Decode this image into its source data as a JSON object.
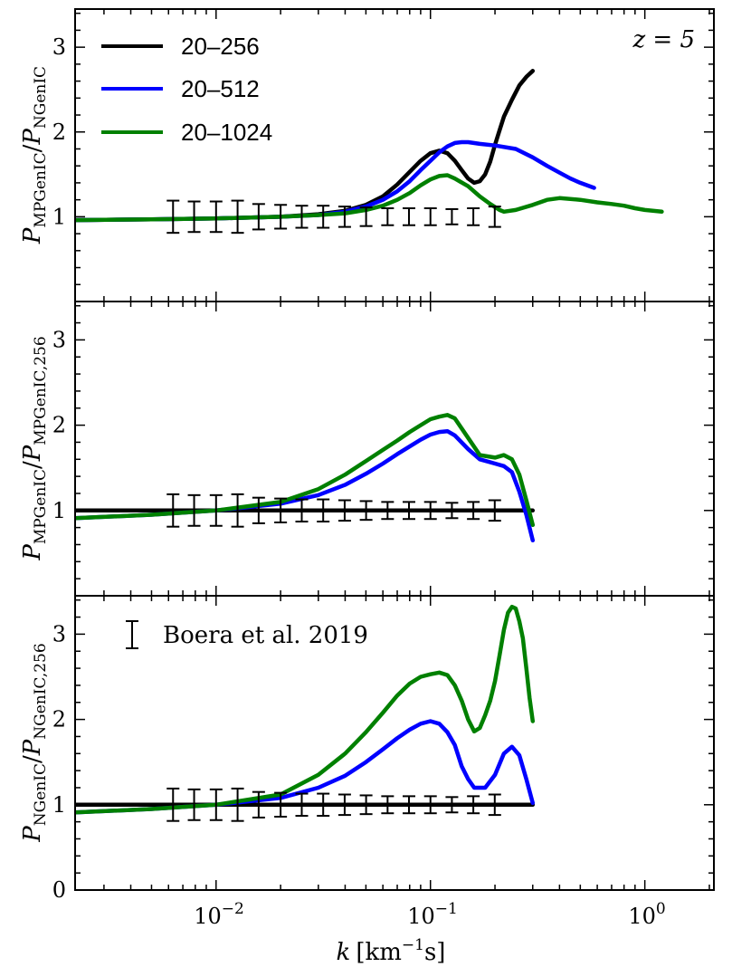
{
  "figure": {
    "xlabel_k": "k",
    "xlabel_units": "[km",
    "xlabel_exp": "−1",
    "xlabel_tail": "s]",
    "xtick_base": "10",
    "x_ticks": [
      {
        "value": 0.01,
        "exp": "−2"
      },
      {
        "value": 0.1,
        "exp": "−1"
      },
      {
        "value": 1.0,
        "exp": "0"
      }
    ],
    "xlim": [
      0.0022,
      2.1
    ]
  },
  "chart_data": [
    {
      "type": "line",
      "panel": "top",
      "ylabel": {
        "main": "P",
        "sub1": "MPGenIC",
        "sep": "/",
        "main2": "P",
        "sub2": "NGenIC"
      },
      "ylim": [
        0,
        3.45
      ],
      "y_ticks": [
        "1",
        "2",
        "3"
      ],
      "annotation": "z = 5",
      "legend": [
        {
          "label": "20–256",
          "color": "#000000"
        },
        {
          "label": "20–512",
          "color": "#0000ff"
        },
        {
          "label": "20–1024",
          "color": "#008000"
        }
      ],
      "series": [
        {
          "name": "20–256",
          "color": "#000000",
          "x": [
            0.0022,
            0.005,
            0.01,
            0.02,
            0.03,
            0.04,
            0.05,
            0.06,
            0.07,
            0.08,
            0.09,
            0.1,
            0.11,
            0.12,
            0.13,
            0.14,
            0.15,
            0.16,
            0.17,
            0.18,
            0.19,
            0.2,
            0.21,
            0.22,
            0.24,
            0.26,
            0.28,
            0.3
          ],
          "y": [
            0.96,
            0.97,
            0.98,
            1.0,
            1.03,
            1.07,
            1.14,
            1.24,
            1.38,
            1.53,
            1.66,
            1.75,
            1.78,
            1.75,
            1.66,
            1.55,
            1.45,
            1.4,
            1.42,
            1.5,
            1.65,
            1.85,
            2.02,
            2.18,
            2.38,
            2.55,
            2.65,
            2.72
          ]
        },
        {
          "name": "20–512",
          "color": "#0000ff",
          "x": [
            0.0022,
            0.005,
            0.01,
            0.02,
            0.03,
            0.04,
            0.05,
            0.06,
            0.07,
            0.08,
            0.09,
            0.1,
            0.11,
            0.12,
            0.13,
            0.14,
            0.15,
            0.17,
            0.2,
            0.25,
            0.3,
            0.35,
            0.4,
            0.45,
            0.5,
            0.58
          ],
          "y": [
            0.96,
            0.97,
            0.98,
            1.0,
            1.02,
            1.06,
            1.12,
            1.2,
            1.3,
            1.42,
            1.55,
            1.66,
            1.76,
            1.83,
            1.87,
            1.88,
            1.88,
            1.86,
            1.84,
            1.8,
            1.7,
            1.6,
            1.52,
            1.45,
            1.4,
            1.34
          ]
        },
        {
          "name": "20–1024",
          "color": "#008000",
          "x": [
            0.0022,
            0.005,
            0.01,
            0.02,
            0.03,
            0.04,
            0.05,
            0.06,
            0.07,
            0.08,
            0.09,
            0.1,
            0.11,
            0.12,
            0.13,
            0.15,
            0.17,
            0.19,
            0.21,
            0.22,
            0.25,
            0.3,
            0.35,
            0.4,
            0.5,
            0.6,
            0.7,
            0.8,
            0.9,
            1.0,
            1.2
          ],
          "y": [
            0.96,
            0.97,
            0.98,
            1.0,
            1.02,
            1.04,
            1.08,
            1.13,
            1.2,
            1.28,
            1.37,
            1.44,
            1.48,
            1.49,
            1.45,
            1.36,
            1.24,
            1.15,
            1.08,
            1.06,
            1.08,
            1.14,
            1.2,
            1.22,
            1.2,
            1.17,
            1.15,
            1.13,
            1.1,
            1.08,
            1.06
          ]
        }
      ],
      "errorbars": {
        "x": [
          0.0063,
          0.0079,
          0.01,
          0.0126,
          0.0158,
          0.02,
          0.0251,
          0.0316,
          0.0398,
          0.0501,
          0.0631,
          0.0794,
          0.1,
          0.1259,
          0.1585,
          0.1995
        ],
        "y": [
          1.0,
          1.0,
          1.0,
          1.0,
          1.0,
          1.0,
          1.0,
          1.0,
          1.0,
          1.0,
          1.0,
          1.0,
          1.0,
          1.0,
          1.0,
          1.0
        ],
        "err": [
          0.19,
          0.18,
          0.18,
          0.19,
          0.15,
          0.14,
          0.13,
          0.13,
          0.12,
          0.11,
          0.1,
          0.1,
          0.1,
          0.09,
          0.1,
          0.12
        ]
      }
    },
    {
      "type": "line",
      "panel": "middle",
      "ylabel": {
        "main": "P",
        "sub1": "MPGenIC",
        "sep": "/",
        "main2": "P",
        "sub2": "MPGenIC,256"
      },
      "ylim": [
        0,
        3.45
      ],
      "y_ticks": [
        "1",
        "2",
        "3"
      ],
      "series": [
        {
          "name": "20–256",
          "color": "#000000",
          "x": [
            0.0022,
            0.3
          ],
          "y": [
            1.0,
            1.0
          ]
        },
        {
          "name": "20–512",
          "color": "#0000ff",
          "x": [
            0.0022,
            0.005,
            0.01,
            0.02,
            0.03,
            0.04,
            0.05,
            0.06,
            0.07,
            0.08,
            0.09,
            0.1,
            0.11,
            0.12,
            0.13,
            0.15,
            0.17,
            0.2,
            0.22,
            0.24,
            0.26,
            0.28,
            0.3
          ],
          "y": [
            0.91,
            0.95,
            1.0,
            1.08,
            1.18,
            1.3,
            1.43,
            1.55,
            1.66,
            1.75,
            1.83,
            1.89,
            1.92,
            1.93,
            1.88,
            1.72,
            1.6,
            1.55,
            1.52,
            1.45,
            1.22,
            0.95,
            0.65
          ]
        },
        {
          "name": "20–1024",
          "color": "#008000",
          "x": [
            0.0022,
            0.005,
            0.01,
            0.02,
            0.03,
            0.04,
            0.05,
            0.06,
            0.07,
            0.08,
            0.09,
            0.1,
            0.11,
            0.12,
            0.13,
            0.15,
            0.17,
            0.2,
            0.22,
            0.24,
            0.26,
            0.28,
            0.3
          ],
          "y": [
            0.91,
            0.95,
            1.0,
            1.1,
            1.25,
            1.42,
            1.58,
            1.71,
            1.82,
            1.92,
            2.0,
            2.07,
            2.1,
            2.12,
            2.08,
            1.85,
            1.65,
            1.62,
            1.65,
            1.6,
            1.42,
            1.12,
            0.83
          ]
        }
      ],
      "errorbars": {
        "x": [
          0.0063,
          0.0079,
          0.01,
          0.0126,
          0.0158,
          0.02,
          0.0251,
          0.0316,
          0.0398,
          0.0501,
          0.0631,
          0.0794,
          0.1,
          0.1259,
          0.1585,
          0.1995
        ],
        "y": [
          1.0,
          1.0,
          1.0,
          1.0,
          1.0,
          1.0,
          1.0,
          1.0,
          1.0,
          1.0,
          1.0,
          1.0,
          1.0,
          1.0,
          1.0,
          1.0
        ],
        "err": [
          0.19,
          0.18,
          0.18,
          0.19,
          0.15,
          0.14,
          0.13,
          0.13,
          0.12,
          0.11,
          0.1,
          0.1,
          0.1,
          0.09,
          0.1,
          0.12
        ]
      }
    },
    {
      "type": "line",
      "panel": "bottom",
      "ylabel": {
        "main": "P",
        "sub1": "NGenIC",
        "sep": "/",
        "main2": "P",
        "sub2": "NGenIC,256"
      },
      "ylim": [
        0,
        3.45
      ],
      "y_ticks": [
        "0",
        "1",
        "2",
        "3"
      ],
      "errorbar_legend": "Boera et al. 2019",
      "series": [
        {
          "name": "20–256",
          "color": "#000000",
          "x": [
            0.0022,
            0.3
          ],
          "y": [
            1.0,
            1.0
          ]
        },
        {
          "name": "20–512",
          "color": "#0000ff",
          "x": [
            0.0022,
            0.005,
            0.01,
            0.02,
            0.03,
            0.04,
            0.05,
            0.06,
            0.07,
            0.08,
            0.09,
            0.1,
            0.11,
            0.12,
            0.13,
            0.14,
            0.15,
            0.16,
            0.18,
            0.2,
            0.22,
            0.24,
            0.26,
            0.28,
            0.3
          ],
          "y": [
            0.91,
            0.95,
            1.0,
            1.08,
            1.2,
            1.34,
            1.5,
            1.65,
            1.78,
            1.88,
            1.95,
            1.98,
            1.95,
            1.85,
            1.7,
            1.45,
            1.3,
            1.2,
            1.2,
            1.35,
            1.6,
            1.68,
            1.58,
            1.3,
            1.02
          ]
        },
        {
          "name": "20–1024",
          "color": "#008000",
          "x": [
            0.0022,
            0.005,
            0.01,
            0.02,
            0.03,
            0.04,
            0.05,
            0.06,
            0.07,
            0.08,
            0.09,
            0.1,
            0.11,
            0.12,
            0.13,
            0.14,
            0.15,
            0.16,
            0.17,
            0.18,
            0.19,
            0.2,
            0.21,
            0.22,
            0.23,
            0.24,
            0.25,
            0.26,
            0.27,
            0.28,
            0.29,
            0.3
          ],
          "y": [
            0.91,
            0.95,
            1.0,
            1.12,
            1.35,
            1.6,
            1.85,
            2.08,
            2.28,
            2.42,
            2.5,
            2.53,
            2.55,
            2.52,
            2.4,
            2.22,
            2.0,
            1.86,
            1.9,
            2.05,
            2.22,
            2.45,
            2.75,
            3.05,
            3.25,
            3.32,
            3.3,
            3.15,
            2.95,
            2.6,
            2.25,
            1.98
          ]
        }
      ],
      "errorbars": {
        "x": [
          0.0063,
          0.0079,
          0.01,
          0.0126,
          0.0158,
          0.02,
          0.0251,
          0.0316,
          0.0398,
          0.0501,
          0.0631,
          0.0794,
          0.1,
          0.1259,
          0.1585,
          0.1995
        ],
        "y": [
          1.0,
          1.0,
          1.0,
          1.0,
          1.0,
          1.0,
          1.0,
          1.0,
          1.0,
          1.0,
          1.0,
          1.0,
          1.0,
          1.0,
          1.0,
          1.0
        ],
        "err": [
          0.19,
          0.18,
          0.18,
          0.19,
          0.15,
          0.14,
          0.13,
          0.13,
          0.12,
          0.11,
          0.1,
          0.1,
          0.1,
          0.09,
          0.1,
          0.12
        ]
      }
    }
  ]
}
